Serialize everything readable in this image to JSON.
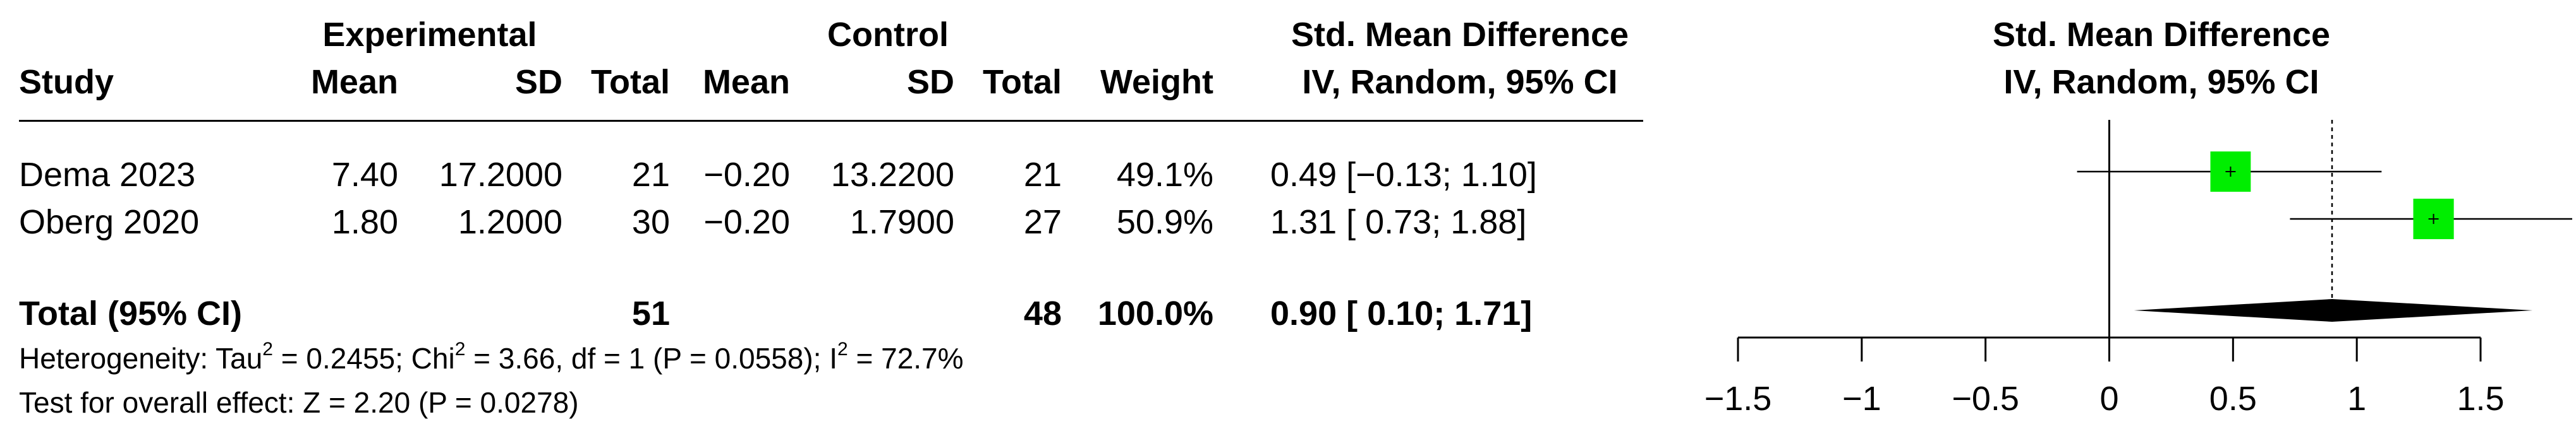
{
  "headers": {
    "group1": "Experimental",
    "group2": "Control",
    "effect_top": "Std. Mean Difference",
    "effect_bottom": "IV, Random, 95% CI",
    "plot_top": "Std. Mean Difference",
    "plot_bottom": "IV, Random, 95% CI",
    "study": "Study",
    "mean1": "Mean",
    "sd1": "SD",
    "total1": "Total",
    "mean2": "Mean",
    "sd2": "SD",
    "total2": "Total",
    "weight": "Weight"
  },
  "studies": [
    {
      "study": "Dema 2023",
      "mean1": "7.40",
      "sd1": "17.2000",
      "total1": "21",
      "mean2": "−0.20",
      "sd2": "13.2200",
      "total2": "21",
      "weight": "49.1%",
      "ci_text": "0.49 [−0.13; 1.10]"
    },
    {
      "study": "Oberg 2020",
      "mean1": "1.80",
      "sd1": "1.2000",
      "total1": "30",
      "mean2": "−0.20",
      "sd2": "1.7900",
      "total2": "27",
      "weight": "50.9%",
      "ci_text": "1.31 [ 0.73; 1.88]"
    }
  ],
  "total": {
    "label": "Total (95% CI)",
    "total1": "51",
    "total2": "48",
    "weight": "100.0%",
    "ci_text": "0.90 [ 0.10; 1.71]"
  },
  "heterogeneity": {
    "prefix": "Heterogeneity: Tau",
    "sup1": "2",
    "mid1": " = 0.2455; Chi",
    "sup2": "2",
    "mid2": " = 3.66, df = 1 (P = 0.0558); I",
    "sup3": "2",
    "end": " = 72.7%"
  },
  "overall_test": "Test for overall effect: Z = 2.20 (P = 0.0278)",
  "colors": {
    "box": "#00ee00",
    "diamond": "#000000",
    "line": "#000000"
  },
  "chart_data": {
    "type": "forest",
    "xlim": [
      -1.5,
      1.5
    ],
    "xticks": [
      -1.5,
      -1,
      -0.5,
      0,
      0.5,
      1,
      1.5
    ],
    "xtick_labels": [
      "−1.5",
      "−1",
      "−0.5",
      "0",
      "0.5",
      "1",
      "1.5"
    ],
    "null_line": 0,
    "pooled_line": 0.9,
    "points": [
      {
        "study": "Dema 2023",
        "estimate": 0.49,
        "lower": -0.13,
        "upper": 1.1,
        "weight": 49.1
      },
      {
        "study": "Oberg 2020",
        "estimate": 1.31,
        "lower": 0.73,
        "upper": 1.88,
        "weight": 50.9
      }
    ],
    "pooled": {
      "estimate": 0.9,
      "lower": 0.1,
      "upper": 1.71
    }
  }
}
